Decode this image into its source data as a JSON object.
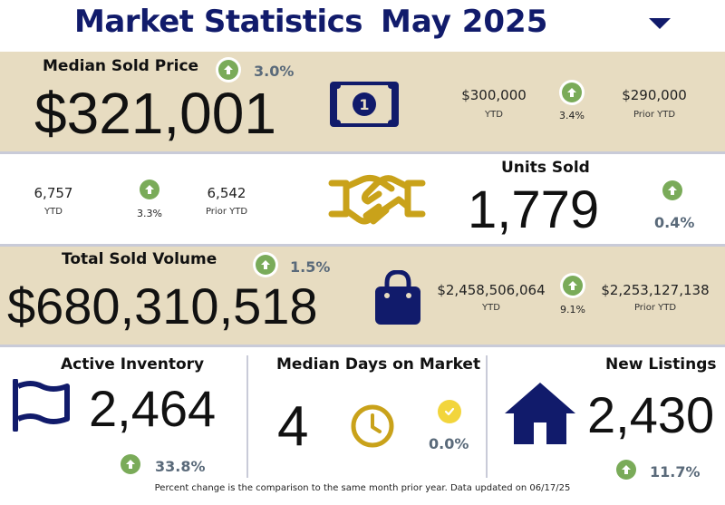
{
  "header": {
    "title": "Market Statistics",
    "month": "May 2025"
  },
  "median_sold_price": {
    "label": "Median Sold Price",
    "value": "$321,001",
    "change": "3.0%",
    "ytd_value": "$300,000",
    "ytd_label": "YTD",
    "ytd_change": "3.4%",
    "prior_ytd_value": "$290,000",
    "prior_ytd_label": "Prior YTD"
  },
  "units_sold": {
    "label": "Units Sold",
    "value": "1,779",
    "change": "0.4%",
    "ytd_value": "6,757",
    "ytd_label": "YTD",
    "ytd_change": "3.3%",
    "prior_ytd_value": "6,542",
    "prior_ytd_label": "Prior YTD"
  },
  "total_sold_volume": {
    "label": "Total Sold Volume",
    "value": "$680,310,518",
    "change": "1.5%",
    "ytd_value": "$2,458,506,064",
    "ytd_label": "YTD",
    "ytd_change": "9.1%",
    "prior_ytd_value": "$2,253,127,138",
    "prior_ytd_label": "Prior YTD"
  },
  "active_inventory": {
    "label": "Active Inventory",
    "value": "2,464",
    "change": "33.8%"
  },
  "median_days_on_market": {
    "label": "Median Days on Market",
    "value": "4",
    "change": "0.0%"
  },
  "new_listings": {
    "label": "New Listings",
    "value": "2,430",
    "change": "11.7%"
  },
  "footer": {
    "note": "Percent change is the comparison to the same month prior year. Data updated on 06/17/25"
  },
  "colors": {
    "navy": "#111b6b",
    "tan": "#e7dcc1",
    "gold": "#c9a21a",
    "up_green": "#7aab59",
    "check_yellow": "#f2d53c"
  },
  "icons": {
    "price": "money-bill-icon",
    "units": "handshake-icon",
    "volume": "shopping-bag-icon",
    "inventory": "flag-icon",
    "days": "clock-icon",
    "listings": "house-icon"
  }
}
